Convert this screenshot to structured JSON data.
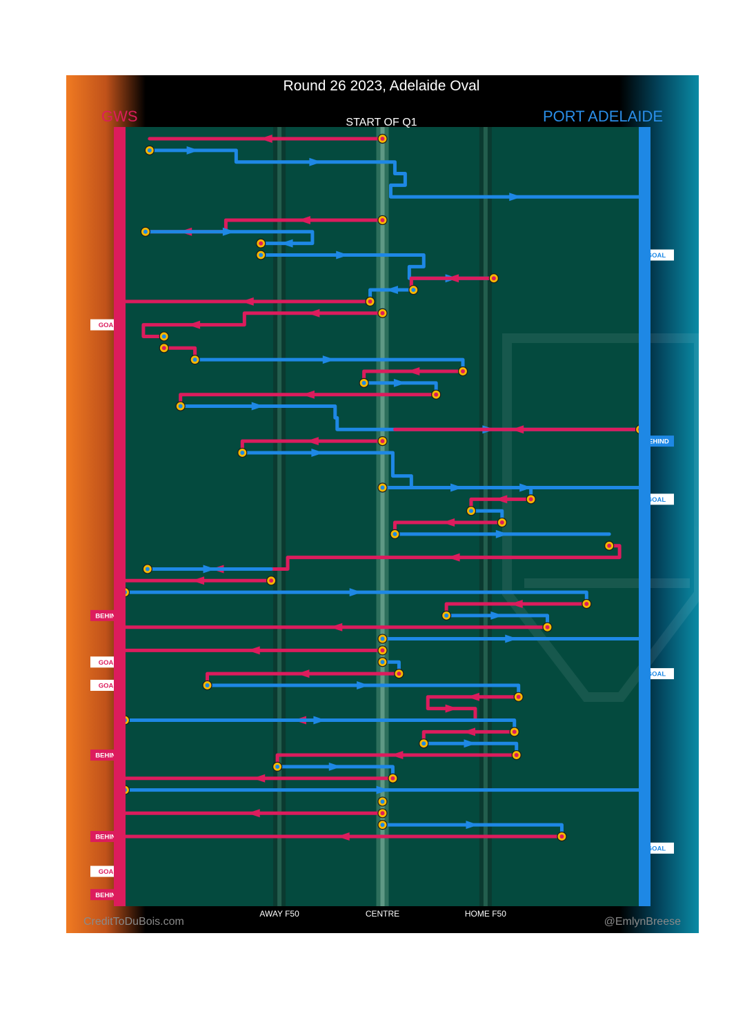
{
  "chart_data": {
    "type": "flow",
    "title": "Round 26 2023, Adelaide Oval",
    "subtitle": "START OF Q1",
    "teams": {
      "away": {
        "name": "GWS",
        "color": "#dc1c5d"
      },
      "home": {
        "name": "PORT ADELAIDE",
        "color": "#1e88e5"
      }
    },
    "x_axis": {
      "ticks": [
        {
          "label": "AWAY F50",
          "value": -50
        },
        {
          "label": "CENTRE",
          "value": 0
        },
        {
          "label": "HOME F50",
          "value": 50
        }
      ],
      "range": [
        -125,
        125
      ]
    },
    "credits": {
      "left": "CreditToDuBois.com",
      "right": "@EmlynBreese"
    },
    "events": [
      {
        "row": 10,
        "team": "home",
        "label": "GOAL"
      },
      {
        "row": 16,
        "team": "away",
        "label": "GOAL"
      },
      {
        "row": 26,
        "team": "home",
        "label": "BEHIND"
      },
      {
        "row": 31,
        "team": "home",
        "label": "GOAL"
      },
      {
        "row": 41,
        "team": "away",
        "label": "BEHIND"
      },
      {
        "row": 45,
        "team": "away",
        "label": "GOAL"
      },
      {
        "row": 46,
        "team": "home",
        "label": "GOAL"
      },
      {
        "row": 47,
        "team": "away",
        "label": "GOAL"
      },
      {
        "row": 53,
        "team": "away",
        "label": "BEHIND"
      },
      {
        "row": 60,
        "team": "away",
        "label": "BEHIND"
      },
      {
        "row": 61,
        "team": "home",
        "label": "GOAL"
      },
      {
        "row": 63,
        "team": "away",
        "label": "GOAL"
      },
      {
        "row": 65,
        "team": "away",
        "label": "BEHIND"
      }
    ],
    "chains": [
      {
        "team": "away",
        "start": 0,
        "pts": [
          0,
          -113
        ]
      },
      {
        "team": "home",
        "start": 1,
        "pts": [
          -113,
          -71,
          -71,
          6,
          6,
          11,
          11,
          4,
          4,
          125
        ]
      },
      {
        "team": "away",
        "start": 7,
        "pts": [
          0,
          -76,
          -76,
          -115
        ]
      },
      {
        "team": "home",
        "start": 8,
        "pts": [
          -115,
          -34,
          -34,
          -59
        ]
      },
      {
        "team": "away",
        "start": 9,
        "pts": [
          -59,
          -59
        ]
      },
      {
        "team": "home",
        "start": 10,
        "pts": [
          -59,
          20,
          20,
          13,
          13,
          54
        ]
      },
      {
        "team": "away",
        "start": 12,
        "pts": [
          54,
          14,
          14,
          15
        ]
      },
      {
        "team": "home",
        "start": 13,
        "pts": [
          15,
          -6,
          -6,
          -6
        ]
      },
      {
        "team": "away",
        "start": 14,
        "pts": [
          -6,
          -125
        ]
      },
      {
        "team": "away",
        "start": 15,
        "pts": [
          0,
          -67,
          -67,
          -116,
          -116,
          -106
        ]
      },
      {
        "team": "home",
        "start": 17,
        "pts": [
          -106,
          -106
        ]
      },
      {
        "team": "away",
        "start": 18,
        "pts": [
          -106,
          -91,
          -91,
          -91
        ]
      },
      {
        "team": "home",
        "start": 19,
        "pts": [
          -91,
          39,
          39,
          39
        ]
      },
      {
        "team": "away",
        "start": 20,
        "pts": [
          39,
          -9,
          -9,
          -9
        ]
      },
      {
        "team": "home",
        "start": 21,
        "pts": [
          -9,
          26,
          26,
          26
        ]
      },
      {
        "team": "away",
        "start": 22,
        "pts": [
          26,
          -98,
          -98,
          -98
        ]
      },
      {
        "team": "home",
        "start": 23,
        "pts": [
          -98,
          -23,
          -23,
          -22,
          -22,
          125
        ]
      },
      {
        "team": "away",
        "start": 25,
        "pts": [
          125,
          6
        ]
      },
      {
        "team": "away",
        "start": 26,
        "pts": [
          0,
          -68,
          -68,
          -68
        ]
      },
      {
        "team": "home",
        "start": 27,
        "pts": [
          -68,
          5,
          5,
          5,
          5,
          14,
          14,
          125
        ]
      },
      {
        "team": "home",
        "start": 30,
        "pts": [
          0,
          72,
          72,
          72
        ]
      },
      {
        "team": "away",
        "start": 31,
        "pts": [
          72,
          43,
          43,
          43
        ]
      },
      {
        "team": "home",
        "start": 32,
        "pts": [
          43,
          58,
          58,
          58
        ]
      },
      {
        "team": "away",
        "start": 33,
        "pts": [
          58,
          6,
          6,
          6
        ]
      },
      {
        "team": "home",
        "start": 34,
        "pts": [
          6,
          110
        ]
      },
      {
        "team": "away",
        "start": 35,
        "pts": [
          110,
          115,
          115,
          -46,
          -46,
          -114
        ]
      },
      {
        "team": "home",
        "start": 37,
        "pts": [
          -114,
          -54
        ]
      },
      {
        "team": "away",
        "start": 38,
        "pts": [
          -54,
          -125
        ]
      },
      {
        "team": "home",
        "start": 39,
        "pts": [
          -125,
          99,
          99,
          99
        ]
      },
      {
        "team": "away",
        "start": 40,
        "pts": [
          99,
          31,
          31,
          31
        ]
      },
      {
        "team": "home",
        "start": 41,
        "pts": [
          31,
          80,
          80,
          80
        ]
      },
      {
        "team": "away",
        "start": 42,
        "pts": [
          80,
          -125
        ]
      },
      {
        "team": "home",
        "start": 43,
        "pts": [
          0,
          125
        ]
      },
      {
        "team": "away",
        "start": 44,
        "pts": [
          0,
          -125
        ]
      },
      {
        "team": "home",
        "start": 45,
        "pts": [
          0,
          8,
          8,
          8
        ]
      },
      {
        "team": "away",
        "start": 46,
        "pts": [
          8,
          -85,
          -85,
          -85
        ]
      },
      {
        "team": "home",
        "start": 47,
        "pts": [
          -85,
          66,
          66,
          66
        ]
      },
      {
        "team": "away",
        "start": 48,
        "pts": [
          66,
          22,
          22,
          45,
          45,
          -125
        ]
      },
      {
        "team": "home",
        "start": 50,
        "pts": [
          -125,
          64,
          64,
          64
        ]
      },
      {
        "team": "away",
        "start": 51,
        "pts": [
          64,
          20,
          20,
          20
        ]
      },
      {
        "team": "home",
        "start": 52,
        "pts": [
          20,
          65,
          65,
          65
        ]
      },
      {
        "team": "away",
        "start": 53,
        "pts": [
          65,
          -51,
          -51,
          -51
        ]
      },
      {
        "team": "home",
        "start": 54,
        "pts": [
          -51,
          5,
          5,
          5
        ]
      },
      {
        "team": "away",
        "start": 55,
        "pts": [
          5,
          -125
        ]
      },
      {
        "team": "home",
        "start": 56,
        "pts": [
          -125,
          125
        ]
      },
      {
        "team": "home",
        "start": 57,
        "pts": [
          0,
          0
        ]
      },
      {
        "team": "away",
        "start": 58,
        "pts": [
          0,
          -125
        ]
      },
      {
        "team": "home",
        "start": 59,
        "pts": [
          0,
          87,
          87,
          87
        ]
      },
      {
        "team": "away",
        "start": 60,
        "pts": [
          87,
          -125
        ]
      }
    ]
  }
}
